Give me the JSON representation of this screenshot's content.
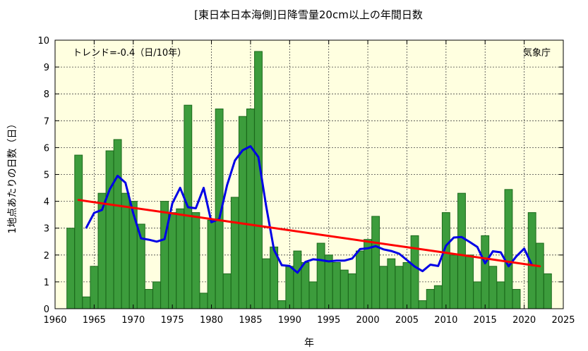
{
  "chart_data": {
    "type": "bar",
    "title": "[東日本日本海側]日降雪量20cm以上の年間日数",
    "xlabel": "年",
    "ylabel": "1地点あたりの日数（日）",
    "trend_label": "トレンド=-0.4（日/10年）",
    "source_label": "気象庁",
    "xlim": [
      1960,
      2025
    ],
    "ylim": [
      0,
      10
    ],
    "x_ticks": [
      1960,
      1965,
      1970,
      1975,
      1980,
      1985,
      1990,
      1995,
      2000,
      2005,
      2010,
      2015,
      2020,
      2025
    ],
    "y_ticks": [
      0,
      1,
      2,
      3,
      4,
      5,
      6,
      7,
      8,
      9,
      10
    ],
    "grid": true,
    "colors": {
      "bar_fill": "#3c9c3c",
      "bar_edge": "#1c6a1c",
      "plot_bg": "#ffffe0",
      "moving_average": "#0000e6",
      "trend": "#ff0000",
      "grid": "#444444"
    },
    "categories": [
      1962,
      1963,
      1964,
      1965,
      1966,
      1967,
      1968,
      1969,
      1970,
      1971,
      1972,
      1973,
      1974,
      1975,
      1976,
      1977,
      1978,
      1979,
      1980,
      1981,
      1982,
      1983,
      1984,
      1985,
      1986,
      1987,
      1988,
      1989,
      1990,
      1991,
      1992,
      1993,
      1994,
      1995,
      1996,
      1997,
      1998,
      1999,
      2000,
      2001,
      2002,
      2003,
      2004,
      2005,
      2006,
      2007,
      2008,
      2009,
      2010,
      2011,
      2012,
      2013,
      2014,
      2015,
      2016,
      2017,
      2018,
      2019,
      2020,
      2021,
      2022,
      2023
    ],
    "series": [
      {
        "type": "bar",
        "values": [
          3.0,
          5.72,
          0.44,
          1.58,
          4.3,
          5.88,
          6.3,
          4.3,
          4.0,
          3.15,
          0.72,
          1.0,
          4.0,
          3.58,
          3.72,
          7.58,
          3.58,
          0.58,
          3.3,
          7.44,
          1.3,
          4.15,
          7.16,
          7.44,
          9.58,
          1.86,
          2.3,
          0.3,
          1.58,
          2.15,
          1.72,
          1.0,
          2.44,
          2.0,
          1.72,
          1.44,
          1.3,
          2.15,
          2.58,
          3.44,
          1.58,
          1.86,
          1.58,
          1.72,
          2.72,
          0.3,
          0.72,
          0.86,
          3.58,
          2.0,
          4.3,
          2.0,
          1.0,
          2.72,
          1.58,
          1.0,
          4.44,
          0.72,
          0.0,
          3.58,
          2.44,
          1.3
        ]
      },
      {
        "type": "line",
        "x": [
          1964,
          1965,
          1966,
          1967,
          1968,
          1969,
          1970,
          1971,
          1972,
          1973,
          1974,
          1975,
          1976,
          1977,
          1978,
          1979,
          1980,
          1981,
          1982,
          1983,
          1984,
          1985,
          1986,
          1987,
          1988,
          1989,
          1990,
          1991,
          1992,
          1993,
          1994,
          1995,
          1996,
          1997,
          1998,
          1999,
          2000,
          2001,
          2002,
          2003,
          2004,
          2005,
          2006,
          2007,
          2008,
          2009,
          2010,
          2011,
          2012,
          2013,
          2014,
          2015,
          2016,
          2017,
          2018,
          2019,
          2020,
          2021
        ],
        "values": [
          3.02,
          3.57,
          3.68,
          4.45,
          4.95,
          4.69,
          3.55,
          2.62,
          2.57,
          2.5,
          2.59,
          3.93,
          4.5,
          3.78,
          3.74,
          4.5,
          3.22,
          3.34,
          4.6,
          5.52,
          5.9,
          6.05,
          5.65,
          3.81,
          2.19,
          1.62,
          1.59,
          1.34,
          1.74,
          1.84,
          1.81,
          1.76,
          1.79,
          1.79,
          1.87,
          2.22,
          2.25,
          2.33,
          2.21,
          2.15,
          2.05,
          1.81,
          1.57,
          1.4,
          1.64,
          1.59,
          2.35,
          2.65,
          2.67,
          2.49,
          2.3,
          1.69,
          2.14,
          2.1,
          1.58,
          1.95,
          2.24,
          1.62
        ]
      },
      {
        "type": "line",
        "x": [
          1963,
          2022
        ],
        "values": [
          4.05,
          1.58
        ]
      }
    ]
  }
}
